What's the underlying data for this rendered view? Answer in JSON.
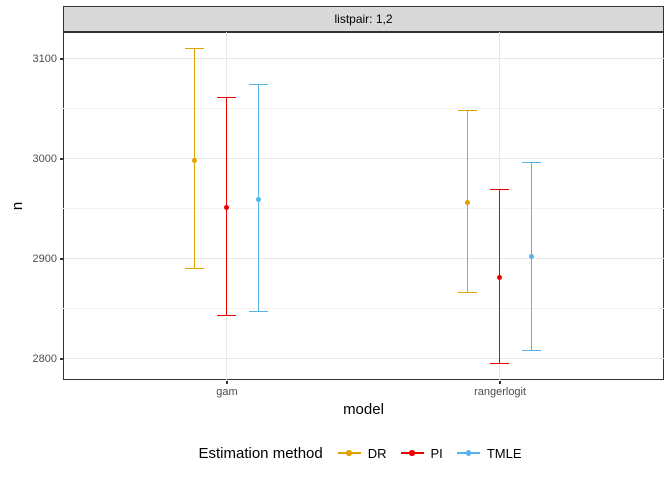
{
  "facet_strip": {
    "label": "listpair: 1,2"
  },
  "y_axis": {
    "title": "n"
  },
  "x_axis": {
    "title": "model"
  },
  "legend": {
    "title": "Estimation method",
    "items": [
      {
        "label": "DR",
        "color": "#E1A200"
      },
      {
        "label": "PI",
        "color": "#EE0000"
      },
      {
        "label": "TMLE",
        "color": "#56B4E9"
      }
    ]
  },
  "chart_data": {
    "type": "pointrange",
    "facet_label": "listpair: 1,2",
    "title": "",
    "xlabel": "model",
    "ylabel": "n",
    "x_categories": [
      "gam",
      "rangerlogit"
    ],
    "ylim": [
      2779,
      3127
    ],
    "y_ticks": [
      {
        "label": "3100",
        "value": 3100
      },
      {
        "label": "3000",
        "value": 3000
      },
      {
        "label": "2900",
        "value": 2900
      },
      {
        "label": "2800",
        "value": 2800
      }
    ],
    "y_minor_gridlines": [
      3050,
      2950,
      2850
    ],
    "grid": "major-and-minor",
    "legend_title": "Estimation method",
    "legend_position": "bottom",
    "series": [
      {
        "name": "DR",
        "color": "#E1A200",
        "points": [
          {
            "category": "gam",
            "estimate": 2998,
            "lower": 2890,
            "upper": 3110
          },
          {
            "category": "rangerlogit",
            "estimate": 2956,
            "lower": 2866,
            "upper": 3048
          }
        ]
      },
      {
        "name": "PI",
        "color": "#EE0000",
        "points": [
          {
            "category": "gam",
            "estimate": 2951,
            "lower": 2843,
            "upper": 3061
          },
          {
            "category": "rangerlogit",
            "estimate": 2881,
            "lower": 2795,
            "upper": 2969
          }
        ]
      },
      {
        "name": "TMLE",
        "color": "#56B4E9",
        "points": [
          {
            "category": "gam",
            "estimate": 2959,
            "lower": 2847,
            "upper": 3074
          },
          {
            "category": "rangerlogit",
            "estimate": 2902,
            "lower": 2808,
            "upper": 2996
          }
        ]
      }
    ]
  }
}
